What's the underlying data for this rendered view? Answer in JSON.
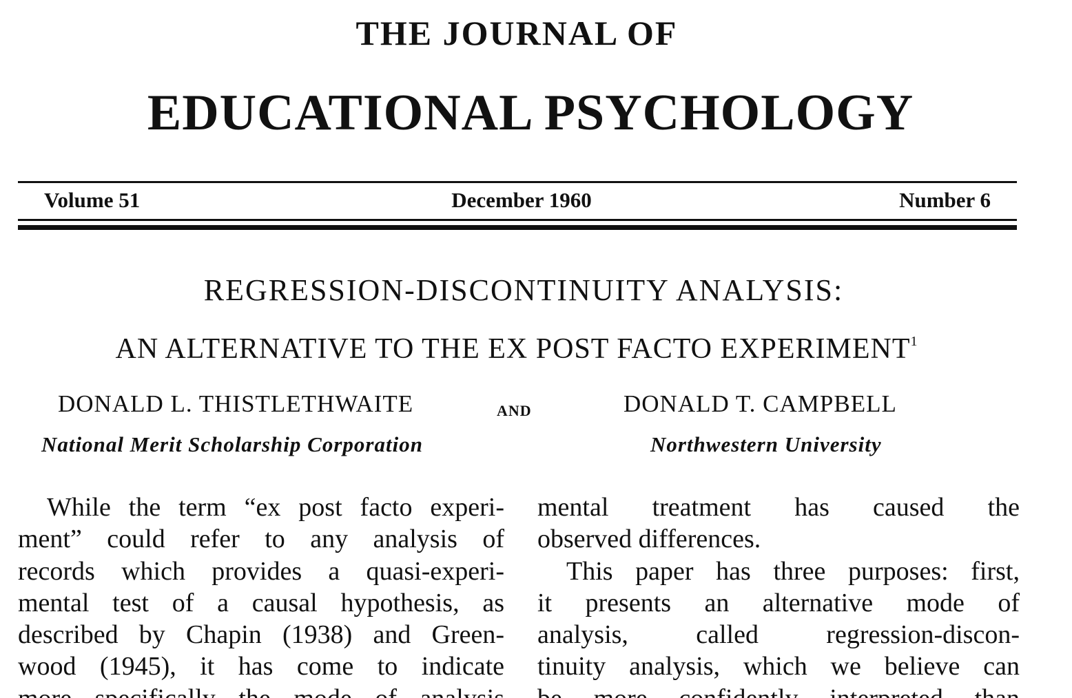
{
  "journal": {
    "name_line1": "THE JOURNAL OF",
    "name_line2": "EDUCATIONAL PSYCHOLOGY"
  },
  "issue": {
    "volume": "Volume 51",
    "date": "December 1960",
    "number": "Number 6"
  },
  "article": {
    "title_line1": "REGRESSION-DISCONTINUITY ANALYSIS:",
    "title_line2": "AN ALTERNATIVE TO THE EX POST FACTO EXPERIMENT",
    "footnote_marker": "1",
    "author1": "DONALD L. THISTLETHWAITE",
    "conjunction": "AND",
    "author2": "DONALD T. CAMPBELL",
    "affiliation1": "National Merit Scholarship Corporation",
    "affiliation2": "Northwestern University"
  },
  "body": {
    "left_column": [
      "While the term “ex post facto experi-",
      "ment” could refer to any analysis of",
      "records which provides a quasi-experi-",
      "mental test of a causal hypothesis, as",
      "described by Chapin (1938) and Green-",
      "wood (1945), it has come to indicate",
      "more specifically the mode of analysis"
    ],
    "right_column": [
      "mental treatment has caused the",
      "observed differences.",
      "This paper has three purposes: first,",
      "it presents an alternative mode of",
      "analysis, called regression-discon-",
      "tinuity analysis, which we believe can",
      "be more confidently interpreted than"
    ]
  }
}
